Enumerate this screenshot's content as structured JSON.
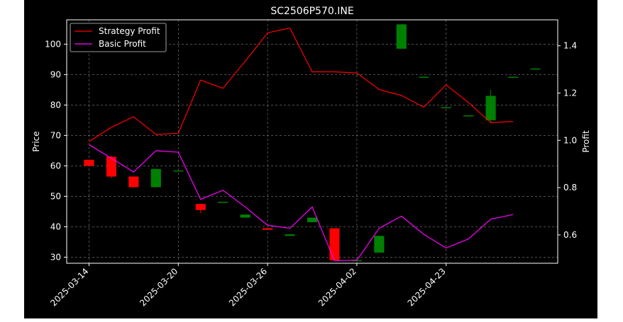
{
  "chart_data": {
    "type": "candlestick+line",
    "title": "SC2506P570.INE",
    "ylabel_left": "Price",
    "ylabel_right": "Profit",
    "ylim_left": [
      28,
      108
    ],
    "ylim_right": [
      0.48,
      1.51
    ],
    "left_ticks": [
      30,
      40,
      50,
      60,
      70,
      80,
      90,
      100
    ],
    "right_ticks": [
      0.6,
      0.8,
      1.0,
      1.2,
      1.4
    ],
    "x_tick_labels": [
      {
        "index": 0,
        "label": "2025-03-14"
      },
      {
        "index": 4,
        "label": "2025-03-20"
      },
      {
        "index": 8,
        "label": "2025-03-26"
      },
      {
        "index": 12,
        "label": "2025-04-02"
      },
      {
        "index": 16,
        "label": "2025-04-23"
      }
    ],
    "grid": true,
    "legend_position": "top-left",
    "colors": {
      "background": "#000000",
      "up": "#008000",
      "down": "#ff0000",
      "strategy": "#ff0000",
      "basic": "#ff00ff",
      "grid": "#808080",
      "text": "#ffffff"
    },
    "candles": [
      {
        "open": 62,
        "close": 60,
        "high": 62,
        "low": 60
      },
      {
        "open": 63,
        "close": 56.5,
        "high": 63.5,
        "low": 56
      },
      {
        "open": 56.5,
        "close": 53,
        "high": 56.5,
        "low": 53
      },
      {
        "open": 53,
        "close": 59,
        "high": 59,
        "low": 53
      },
      {
        "open": 58.2,
        "close": 58.5,
        "high": 58.5,
        "low": 58.2
      },
      {
        "open": 47.5,
        "close": 45.5,
        "high": 47.5,
        "low": 44.5
      },
      {
        "open": 48,
        "close": 48.2,
        "high": 48.2,
        "low": 48
      },
      {
        "open": 43,
        "close": 44,
        "high": 44,
        "low": 43
      },
      {
        "open": 39.5,
        "close": 39,
        "high": 39.5,
        "low": 39
      },
      {
        "open": 37,
        "close": 37.5,
        "high": 37.5,
        "low": 37
      },
      {
        "open": 41.5,
        "close": 43,
        "high": 43,
        "low": 41.5
      },
      {
        "open": 39.5,
        "close": 29,
        "high": 39.5,
        "low": 29
      },
      {
        "open": 29,
        "close": 29,
        "high": 29,
        "low": 29
      },
      {
        "open": 31.5,
        "close": 37,
        "high": 37,
        "low": 31.5
      },
      {
        "open": 98.5,
        "close": 106.5,
        "high": 106.5,
        "low": 98.5
      },
      {
        "open": 89,
        "close": 89.3,
        "high": 89.3,
        "low": 89
      },
      {
        "open": 79,
        "close": 79.3,
        "high": 79.3,
        "low": 79
      },
      {
        "open": 76.3,
        "close": 76.6,
        "high": 76.6,
        "low": 76.3
      },
      {
        "open": 75,
        "close": 83,
        "high": 85,
        "low": 74
      },
      {
        "open": 89,
        "close": 89.3,
        "high": 89.3,
        "low": 89
      },
      {
        "open": 91.7,
        "close": 92,
        "high": 92,
        "low": 91.7
      }
    ],
    "series": [
      {
        "name": "Strategy Profit",
        "axis": "right",
        "values": [
          0.995,
          1.055,
          1.1,
          1.025,
          1.03,
          1.255,
          1.22,
          1.335,
          1.455,
          1.475,
          1.29,
          1.29,
          1.285,
          1.215,
          1.19,
          1.14,
          1.235,
          1.16,
          1.075,
          1.08
        ]
      },
      {
        "name": "Basic Profit",
        "axis": "left",
        "values": [
          67,
          62.5,
          58,
          65,
          64.5,
          49,
          52,
          46.5,
          40.5,
          39.5,
          46.5,
          28.8,
          29,
          39.5,
          43.5,
          37.5,
          33,
          36,
          42.5,
          44
        ]
      }
    ],
    "x_slot_count": 22
  }
}
